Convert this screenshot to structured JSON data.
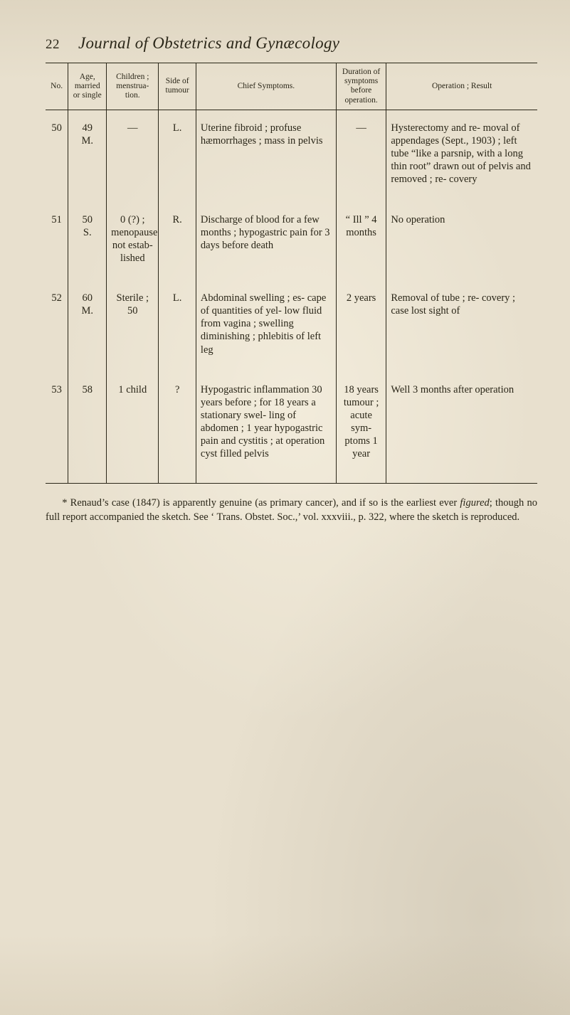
{
  "page_number": "22",
  "running_title": "Journal of Obstetrics and Gynæcology",
  "colors": {
    "paper_bg": "#e8e0ce",
    "ink": "#2a2618",
    "rule": "#2a2618"
  },
  "typography": {
    "body_fontsize_pt": 11,
    "header_fontsize_pt": 9,
    "title_fontsize_pt": 17,
    "font_family": "Times New Roman / old-style serif"
  },
  "table": {
    "columns": [
      {
        "key": "no",
        "header": "No.",
        "width_pct": 4.6,
        "align": "center"
      },
      {
        "key": "age",
        "header": "Age, married or single",
        "width_pct": 7.8,
        "align": "center"
      },
      {
        "key": "chil",
        "header": "Children ; menstrua- tion.",
        "width_pct": 10.6,
        "align": "center"
      },
      {
        "key": "side",
        "header": "Side of tumour",
        "width_pct": 7.6,
        "align": "center"
      },
      {
        "key": "sym",
        "header": "Chief Symptoms.",
        "width_pct": 28.5,
        "align": "left"
      },
      {
        "key": "dur",
        "header": "Duration of symptoms before operation.",
        "width_pct": 10.2,
        "align": "center"
      },
      {
        "key": "res",
        "header": "Operation ; Result",
        "width_pct": 30.7,
        "align": "left"
      }
    ],
    "rows": [
      {
        "no": "50",
        "age": "49\nM.",
        "chil": "—",
        "side": "L.",
        "sym": "Uterine fibroid ; profuse hæmorrhages ; mass in pelvis",
        "dur": "—",
        "res": "Hysterectomy and re- moval of appendages (Sept., 1903) ; left tube “like a parsnip, with a long thin root” drawn out of pelvis and removed ; re- covery"
      },
      {
        "no": "51",
        "age": "50\nS.",
        "chil": "0 (?) ; menopause not estab- lished",
        "side": "R.",
        "sym": "Discharge of blood for a few months ; hypogastric pain for 3 days before death",
        "dur": "“ Ill ” 4 months",
        "res": "No operation"
      },
      {
        "no": "52",
        "age": "60\nM.",
        "chil": "Sterile ; 50",
        "side": "L.",
        "sym": "Abdominal swelling ; es- cape of quantities of yel- low fluid from vagina ; swelling diminishing ; phlebitis of left leg",
        "dur": "2 years",
        "res": "Removal of tube ; re- covery ; case lost sight of"
      },
      {
        "no": "53",
        "age": "58",
        "chil": "1 child",
        "side": "?",
        "sym": "Hypogastric inflammation 30 years before ; for 18 years a stationary swel- ling of abdomen ; 1 year hypogastric pain and cystitis ; at operation cyst filled pelvis",
        "dur": "18 years tumour ; acute sym- ptoms 1 year",
        "res": "Well 3 months after operation"
      }
    ]
  },
  "footnote": "* Renaud’s case (1847) is apparently genuine (as primary cancer), and if so is the earliest ever figured; though no full report accompanied the sketch. See ‘ Trans. Obstet. Soc.,’ vol. xxxviii., p. 322, where the sketch is reproduced.",
  "footnote_italic_word": "figured"
}
